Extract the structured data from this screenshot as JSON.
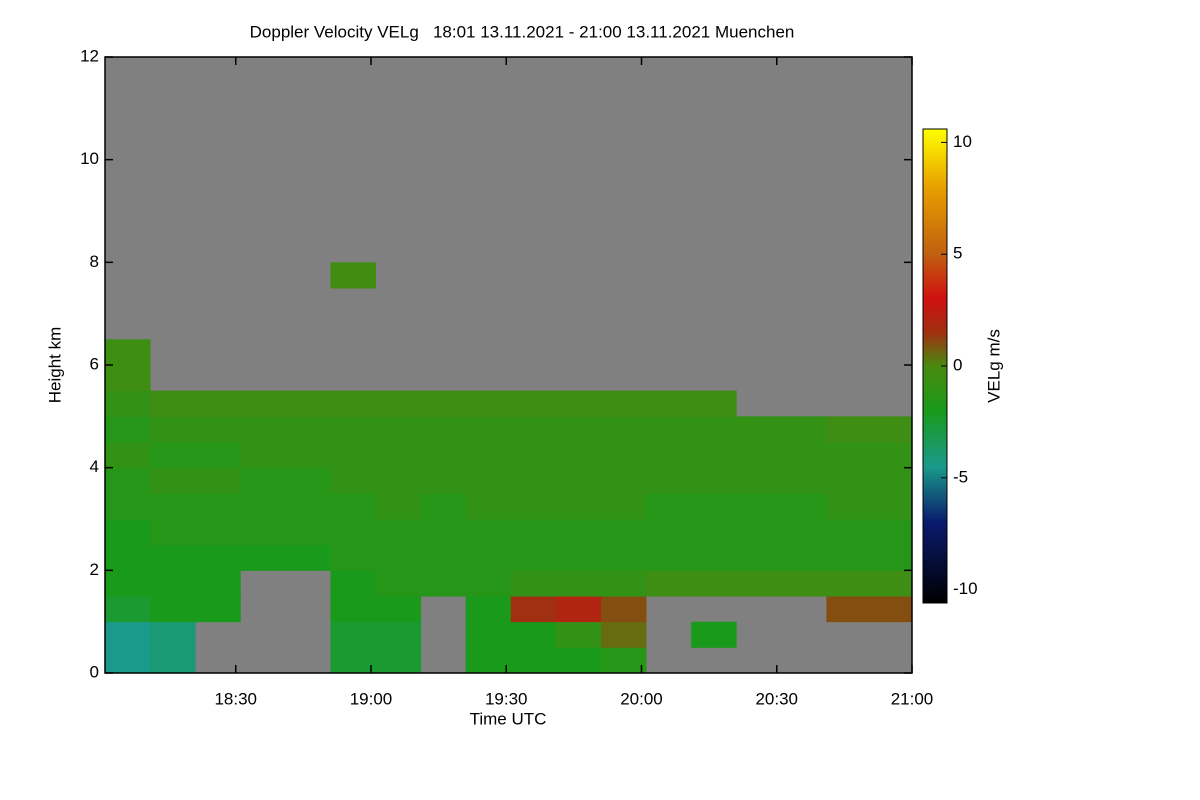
{
  "chart_data": {
    "type": "heatmap",
    "title": "Doppler Velocity VELg   18:01 13.11.2021 - 21:00 13.11.2021 Muenchen",
    "xlabel": "Time UTC",
    "ylabel": "Height km",
    "colorbar_label": "VELg m/s",
    "xlim": [
      1081,
      1260
    ],
    "xticks": [
      {
        "value": 1110,
        "label": "18:30"
      },
      {
        "value": 1140,
        "label": "19:00"
      },
      {
        "value": 1170,
        "label": "19:30"
      },
      {
        "value": 1200,
        "label": "20:00"
      },
      {
        "value": 1230,
        "label": "20:30"
      },
      {
        "value": 1260,
        "label": "21:00"
      }
    ],
    "ylim": [
      0,
      12
    ],
    "yticks": [
      0,
      2,
      4,
      6,
      8,
      10,
      12
    ],
    "clim": [
      -10.6,
      10.6
    ],
    "cticks": [
      -10,
      -5,
      0,
      5,
      10
    ],
    "missing_color": "#808080",
    "colorscale": [
      [
        -10.6,
        "#000000"
      ],
      [
        -7,
        "#0a1a6e"
      ],
      [
        -4.5,
        "#1a9a8a"
      ],
      [
        -2,
        "#1a9a1a"
      ],
      [
        0,
        "#4a8a10"
      ],
      [
        1.5,
        "#a03010"
      ],
      [
        3,
        "#d01010"
      ],
      [
        5,
        "#c06010"
      ],
      [
        8,
        "#e8a000"
      ],
      [
        10.6,
        "#ffff00"
      ]
    ],
    "x": [
      1086,
      1096,
      1106,
      1116,
      1126,
      1136,
      1146,
      1156,
      1166,
      1176,
      1186,
      1196,
      1206,
      1216,
      1226,
      1236,
      1246,
      1256
    ],
    "y": [
      0.25,
      0.75,
      1.25,
      1.75,
      2.25,
      2.75,
      3.25,
      3.75,
      4.25,
      4.75,
      5.25,
      5.75,
      6.25,
      6.75,
      7.25,
      7.75,
      8.25,
      8.75,
      9.25,
      9.75,
      10.25,
      10.75,
      11.25,
      11.75
    ],
    "z": [
      [
        -4.5,
        -4.5,
        -2.5,
        -2,
        -2,
        -2,
        -1.5,
        -1.5,
        -1,
        -1.5,
        -1,
        -0.5,
        -0.5,
        null,
        null,
        null,
        null,
        null,
        null,
        null,
        null,
        null,
        null,
        null
      ],
      [
        -4,
        -4,
        -2,
        -2,
        -2,
        -1.5,
        -1.5,
        -1,
        -1.5,
        -1,
        -0.5,
        null,
        null,
        null,
        null,
        null,
        null,
        null,
        null,
        null,
        null,
        null,
        null,
        null
      ],
      [
        null,
        null,
        -2,
        -2,
        -2,
        -1.5,
        -1.5,
        -1,
        -1.5,
        -1,
        -0.5,
        null,
        null,
        null,
        null,
        null,
        null,
        null,
        null,
        null,
        null,
        null,
        null,
        null
      ],
      [
        null,
        null,
        null,
        null,
        -2,
        -1.5,
        -1.5,
        -1.5,
        -1,
        -1,
        -0.5,
        null,
        null,
        null,
        null,
        null,
        null,
        null,
        null,
        null,
        null,
        null,
        null,
        null
      ],
      [
        null,
        null,
        null,
        null,
        -2,
        -1.5,
        -1.5,
        -1.5,
        -1,
        -1,
        -0.5,
        null,
        null,
        null,
        null,
        null,
        null,
        null,
        null,
        null,
        null,
        null,
        null,
        null
      ],
      [
        -2.5,
        -2.5,
        -2,
        -2,
        -1.5,
        -1.5,
        -1.5,
        -1,
        -1,
        -1,
        -0.5,
        null,
        null,
        null,
        null,
        -0.3,
        null,
        null,
        null,
        null,
        null,
        null,
        null,
        null
      ],
      [
        -2.5,
        -2.5,
        -2,
        -1.5,
        -1.5,
        -1.5,
        -1,
        -1,
        -1,
        -1,
        -0.5,
        null,
        null,
        null,
        null,
        null,
        null,
        null,
        null,
        null,
        null,
        null,
        null,
        null
      ],
      [
        null,
        null,
        null,
        -1.5,
        -1.5,
        -1.5,
        -1.5,
        -1,
        -1,
        -1,
        -0.5,
        null,
        null,
        null,
        null,
        null,
        null,
        null,
        null,
        null,
        null,
        null,
        null,
        null
      ],
      [
        -2,
        -2,
        -2,
        -1.5,
        -1.5,
        -1.5,
        -1,
        -1,
        -1,
        -1,
        -0.5,
        null,
        null,
        null,
        null,
        null,
        null,
        null,
        null,
        null,
        null,
        null,
        null,
        null
      ],
      [
        -2,
        -2,
        1.5,
        -1,
        -1.5,
        -1.5,
        -1,
        -1,
        -1,
        -1,
        -0.5,
        null,
        null,
        null,
        null,
        null,
        null,
        null,
        null,
        null,
        null,
        null,
        null,
        null
      ],
      [
        -2,
        -1,
        2,
        -1,
        -1.5,
        -1.5,
        -1,
        -1,
        -1,
        -1,
        -0.5,
        null,
        null,
        null,
        null,
        null,
        null,
        null,
        null,
        null,
        null,
        null,
        null,
        null
      ],
      [
        -1.5,
        0.5,
        1,
        -1,
        -1.5,
        -1.5,
        -1,
        -1,
        -1,
        -1,
        -0.5,
        null,
        null,
        null,
        null,
        null,
        null,
        null,
        null,
        null,
        null,
        null,
        null,
        null
      ],
      [
        null,
        null,
        null,
        -0.5,
        -1.5,
        -1.5,
        -1.5,
        -1,
        -1,
        -1,
        -0.5,
        null,
        null,
        null,
        null,
        null,
        null,
        null,
        null,
        null,
        null,
        null,
        null,
        null
      ],
      [
        null,
        -2,
        null,
        -0.5,
        -1.5,
        -1.5,
        -1.5,
        -1,
        -1,
        -1,
        -0.5,
        null,
        null,
        null,
        null,
        null,
        null,
        null,
        null,
        null,
        null,
        null,
        null,
        null
      ],
      [
        null,
        null,
        null,
        -0.5,
        -1.5,
        -1.5,
        -1.5,
        -1,
        -1,
        -1,
        null,
        null,
        null,
        null,
        null,
        null,
        null,
        null,
        null,
        null,
        null,
        null,
        null,
        null
      ],
      [
        null,
        null,
        null,
        -0.5,
        -1.5,
        -1.5,
        -1.5,
        -1,
        -1,
        -1,
        null,
        null,
        null,
        null,
        null,
        null,
        null,
        null,
        null,
        null,
        null,
        null,
        null,
        null
      ],
      [
        null,
        null,
        1,
        -0.5,
        -1.5,
        -1.5,
        -1,
        -1,
        -1,
        -0.5,
        null,
        null,
        null,
        null,
        null,
        null,
        null,
        null,
        null,
        null,
        null,
        null,
        null,
        null
      ],
      [
        null,
        null,
        1,
        -0.5,
        -1.5,
        -1.5,
        -1,
        -1,
        -1,
        -0.5,
        null,
        null,
        null,
        null,
        null,
        null,
        null,
        null,
        null,
        null,
        null,
        null,
        null,
        null
      ]
    ]
  }
}
